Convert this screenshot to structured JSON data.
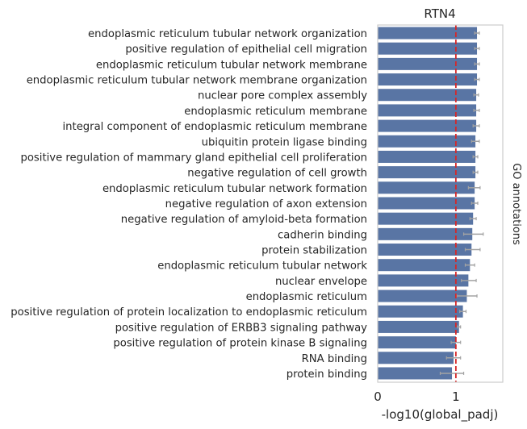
{
  "chart_data": {
    "type": "bar",
    "orientation": "horizontal",
    "title": "RTN4",
    "xlabel": "-log10(global_padj)",
    "ylabel": "",
    "side_label": "GO annotations",
    "xlim": [
      0,
      1.6
    ],
    "xticks": [
      "0",
      "1"
    ],
    "xtick_values": [
      0,
      1
    ],
    "threshold_line": 1,
    "grid": false,
    "colors": {
      "bar": "#5975a4",
      "error": "#a3a3a3",
      "threshold": "#d62728",
      "frame": "#cccccc"
    },
    "categories": [
      "endoplasmic reticulum tubular network organization",
      "positive regulation of epithelial cell migration",
      "endoplasmic reticulum tubular network membrane",
      "endoplasmic reticulum tubular network membrane organization",
      "nuclear pore complex assembly",
      "endoplasmic reticulum membrane",
      "integral component of endoplasmic reticulum membrane",
      "ubiquitin protein ligase binding",
      "positive regulation of mammary gland epithelial cell proliferation",
      "negative regulation of cell growth",
      "endoplasmic reticulum tubular network formation",
      "negative regulation of axon extension",
      "negative regulation of amyloid-beta formation",
      "cadherin binding",
      "protein stabilization",
      "endoplasmic reticulum tubular network",
      "nuclear envelope",
      "endoplasmic reticulum",
      "positive regulation of protein localization to endoplasmic reticulum",
      "positive regulation of ERBB3 signaling pathway",
      "positive regulation of protein kinase B signaling",
      "RNA binding",
      "protein binding"
    ],
    "values": [
      1.27,
      1.27,
      1.27,
      1.27,
      1.26,
      1.26,
      1.26,
      1.25,
      1.25,
      1.25,
      1.24,
      1.24,
      1.22,
      1.21,
      1.2,
      1.18,
      1.16,
      1.14,
      1.09,
      1.04,
      1.0,
      0.97,
      0.95
    ],
    "error_low": [
      1.24,
      1.24,
      1.24,
      1.24,
      1.23,
      1.23,
      1.22,
      1.2,
      1.22,
      1.22,
      1.16,
      1.2,
      1.18,
      1.1,
      1.12,
      1.12,
      1.07,
      1.01,
      1.05,
      1.02,
      0.94,
      0.88,
      0.8
    ],
    "error_high": [
      1.3,
      1.3,
      1.3,
      1.3,
      1.29,
      1.3,
      1.3,
      1.3,
      1.28,
      1.28,
      1.31,
      1.28,
      1.26,
      1.35,
      1.31,
      1.24,
      1.26,
      1.27,
      1.13,
      1.06,
      1.06,
      1.06,
      1.1
    ]
  }
}
